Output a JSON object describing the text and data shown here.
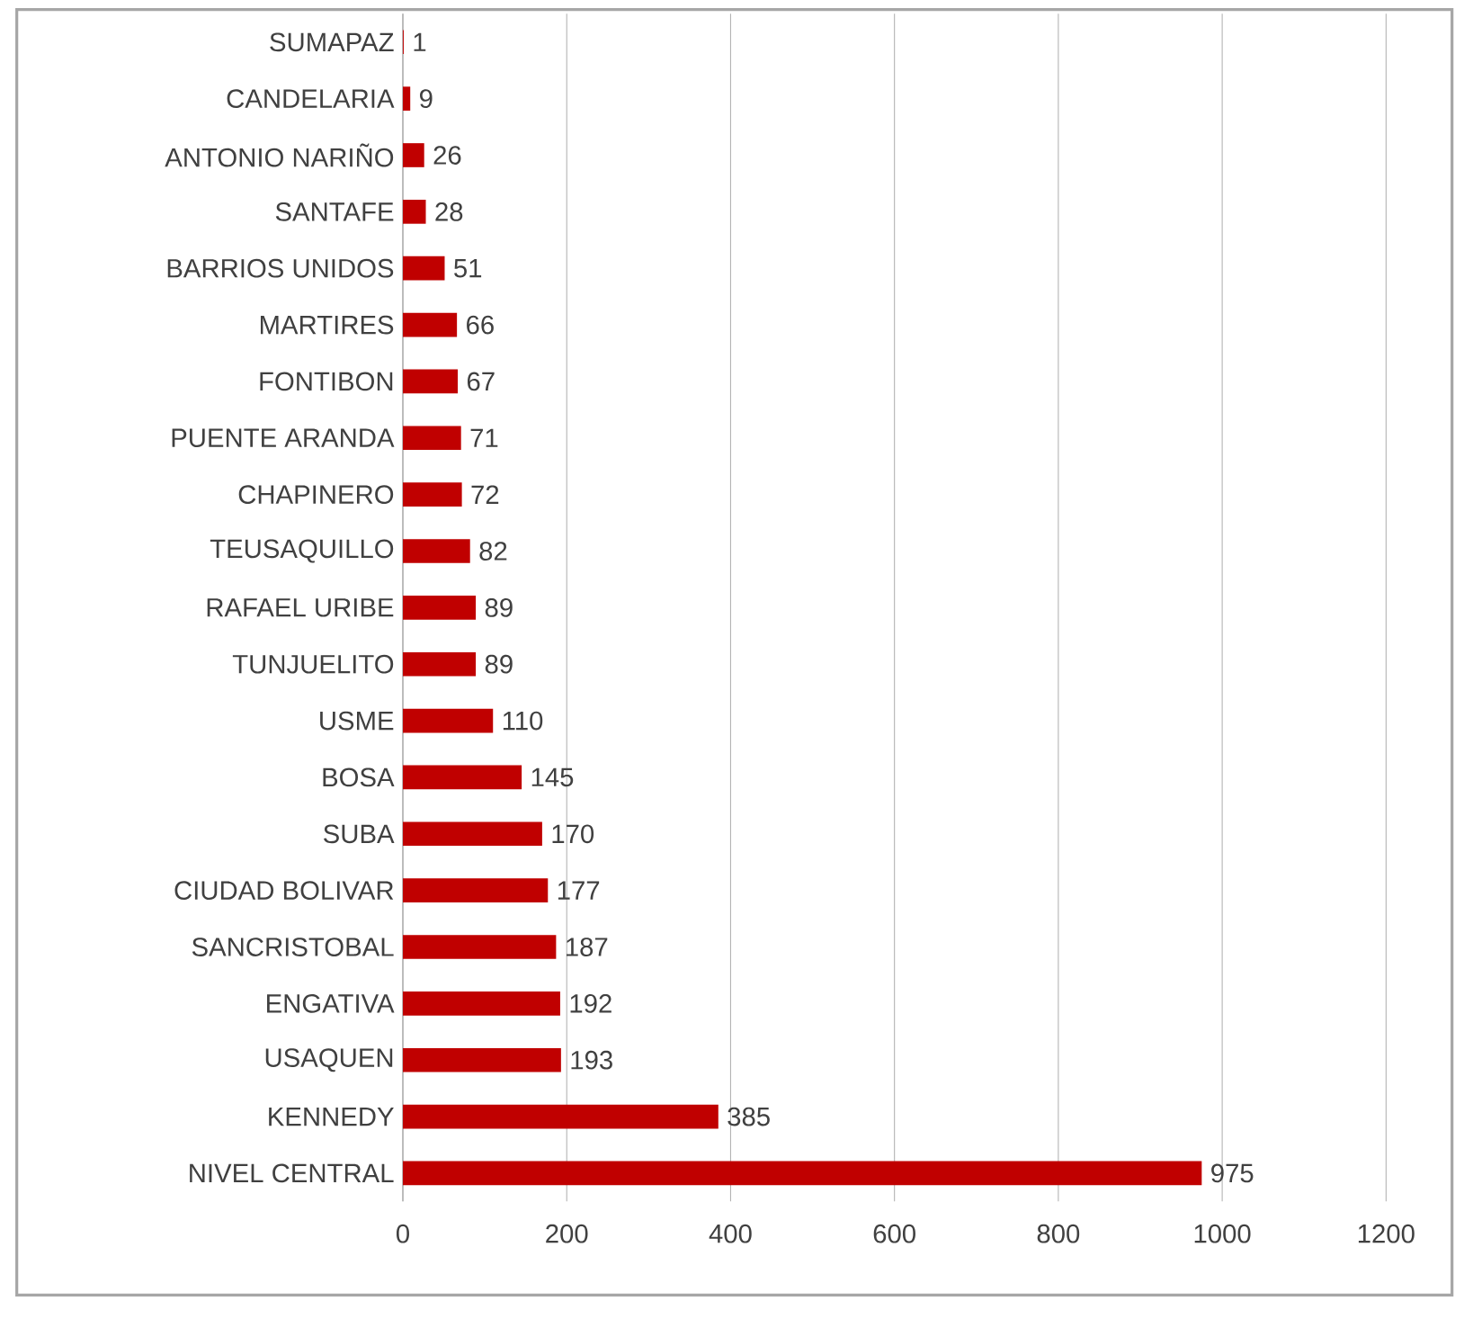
{
  "chart_data": {
    "type": "bar",
    "orientation": "horizontal",
    "categories": [
      "SUMAPAZ",
      "CANDELARIA",
      "ANTONIO NARIÑO",
      "SANTAFE",
      "BARRIOS UNIDOS",
      "MARTIRES",
      "FONTIBON",
      "PUENTE ARANDA",
      "CHAPINERO",
      "TEUSAQUILLO",
      "RAFAEL URIBE",
      "TUNJUELITO",
      "USME",
      "BOSA",
      "SUBA",
      "CIUDAD BOLIVAR",
      "SANCRISTOBAL",
      "ENGATIVA",
      "USAQUEN",
      "KENNEDY",
      "NIVEL CENTRAL"
    ],
    "values": [
      1,
      9,
      26,
      28,
      51,
      66,
      67,
      71,
      72,
      82,
      89,
      89,
      110,
      145,
      170,
      177,
      187,
      192,
      193,
      385,
      975
    ],
    "color": "#c00000",
    "xlim": [
      0,
      1200
    ],
    "xticks": [
      0,
      200,
      400,
      600,
      800,
      1000,
      1200
    ],
    "grid": "x",
    "data_labels": true
  }
}
